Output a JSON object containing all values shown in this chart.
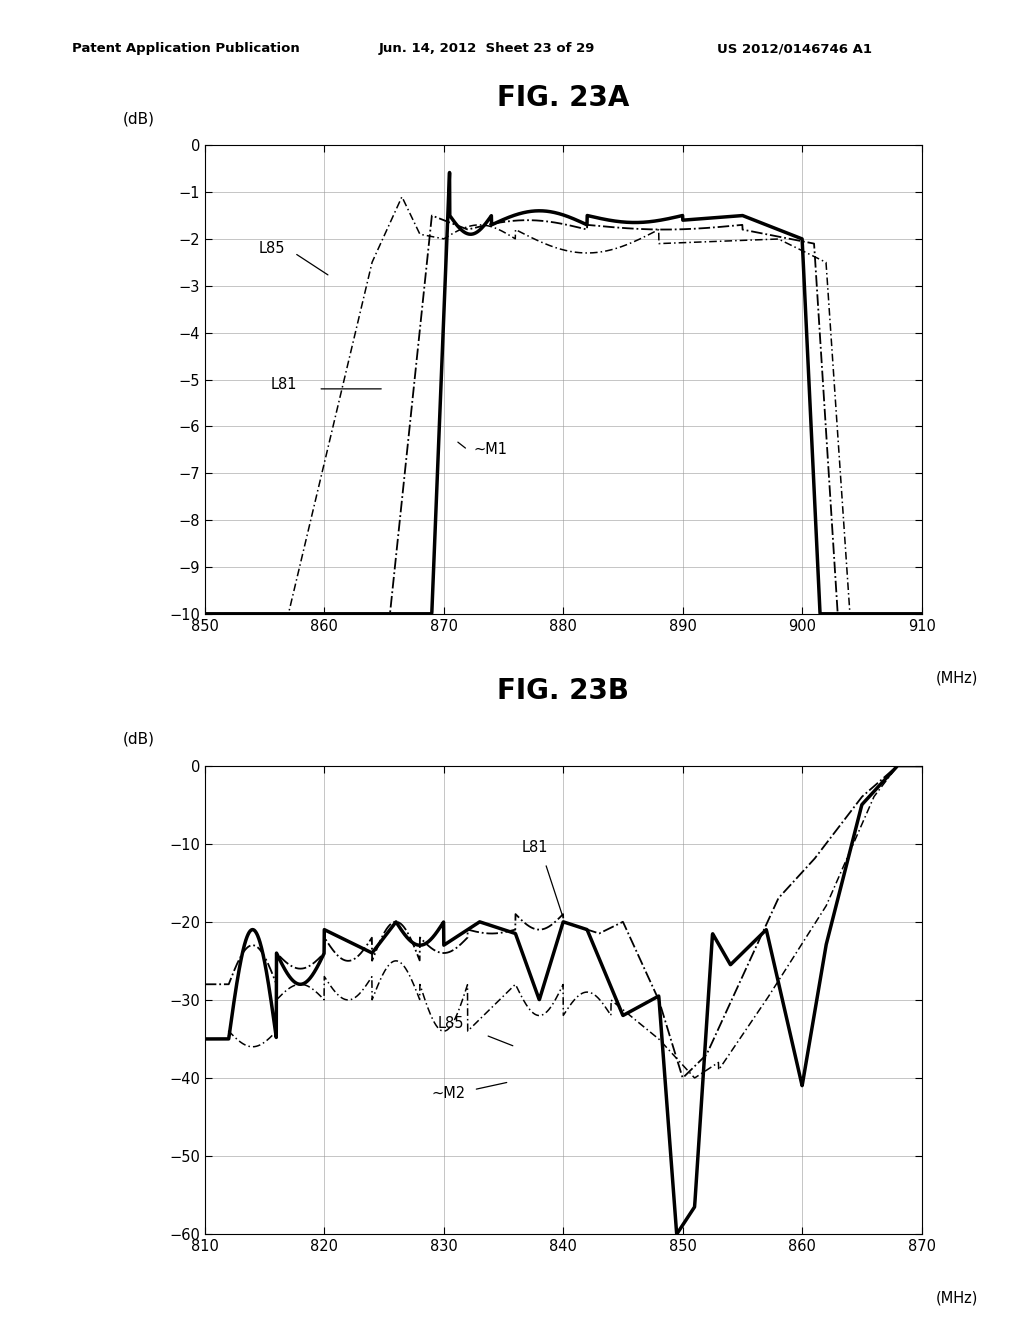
{
  "fig_title_a": "FIG. 23A",
  "fig_title_b": "FIG. 23B",
  "header_left": "Patent Application Publication",
  "header_center": "Jun. 14, 2012  Sheet 23 of 29",
  "header_right": "US 2012/0146746 A1",
  "background_color": "#ffffff",
  "plot_bg": "#ffffff",
  "fig23a": {
    "xlabel": "(MHz)",
    "ylabel": "(dB)",
    "xmin": 850,
    "xmax": 910,
    "ymin": -10,
    "ymax": 0,
    "xticks": [
      850,
      860,
      870,
      880,
      890,
      900,
      910
    ],
    "yticks": [
      0,
      -1,
      -2,
      -3,
      -4,
      -5,
      -6,
      -7,
      -8,
      -9,
      -10
    ],
    "label_M1": "~M1",
    "label_L81": "L81",
    "label_L85": "L85"
  },
  "fig23b": {
    "xlabel": "(MHz)",
    "ylabel": "(dB)",
    "xmin": 810,
    "xmax": 870,
    "ymin": -60,
    "ymax": 0,
    "xticks": [
      810,
      820,
      830,
      840,
      850,
      860,
      870
    ],
    "yticks": [
      0,
      -10,
      -20,
      -30,
      -40,
      -50,
      -60
    ],
    "label_M2": "~M2",
    "label_L81": "L81",
    "label_L85": "L85"
  }
}
